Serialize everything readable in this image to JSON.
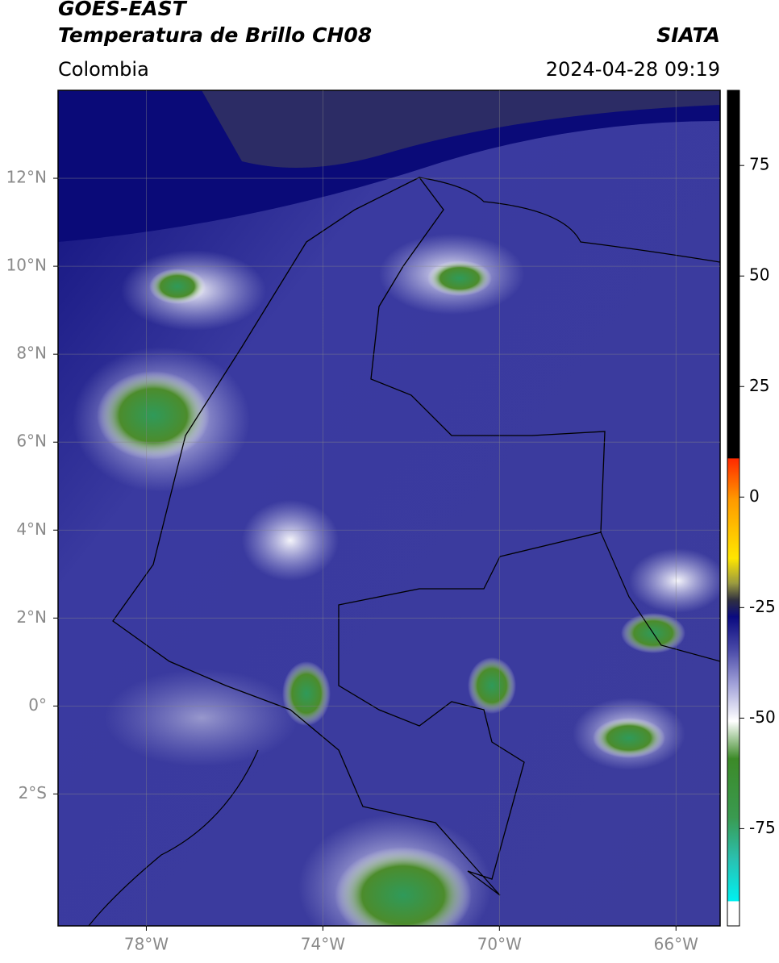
{
  "header": {
    "title": "GOES-EAST",
    "subtitle": "Temperatura de Brillo CH08",
    "source": "SIATA",
    "region": "Colombia",
    "datetime": "2024-04-28 09:19"
  },
  "map": {
    "xlim": [
      -80,
      -65
    ],
    "ylim": [
      -5,
      14
    ],
    "xticks": [
      {
        "value": -78,
        "label": "78°W"
      },
      {
        "value": -74,
        "label": "74°W"
      },
      {
        "value": -70,
        "label": "70°W"
      },
      {
        "value": -66,
        "label": "66°W"
      }
    ],
    "yticks": [
      {
        "value": 12,
        "label": "12°N"
      },
      {
        "value": 10,
        "label": "10°N"
      },
      {
        "value": 8,
        "label": "8°N"
      },
      {
        "value": 6,
        "label": "6°N"
      },
      {
        "value": 4,
        "label": "4°N"
      },
      {
        "value": 2,
        "label": "2°N"
      },
      {
        "value": 0,
        "label": "0°"
      },
      {
        "value": -2,
        "label": "2°S"
      }
    ],
    "grid": true
  },
  "colorbar": {
    "lim": [
      -97,
      92
    ],
    "ticks": [
      75,
      50,
      25,
      0,
      -25,
      -50,
      -75
    ]
  }
}
